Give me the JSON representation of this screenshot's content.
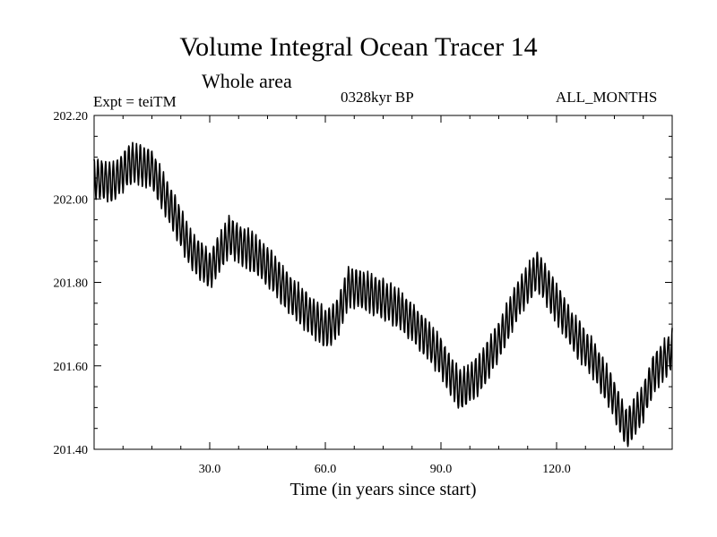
{
  "chart_data": {
    "type": "line",
    "title": "Volume Integral Ocean Tracer 14",
    "subtitle": "Whole area",
    "experiment": "Expt = teiTM",
    "period": "0328kyr BP",
    "months": "ALL_MONTHS",
    "xlabel": "Time (in years since start)",
    "ylabel": "",
    "xlim": [
      0,
      150
    ],
    "ylim": [
      201.4,
      202.2
    ],
    "x_ticks": [
      30,
      60,
      90,
      120
    ],
    "x_tick_labels": [
      "30.0",
      "60.0",
      "90.0",
      "120.0"
    ],
    "y_ticks": [
      201.4,
      201.6,
      201.8,
      202.0,
      202.2
    ],
    "y_tick_labels": [
      "201.40",
      "201.60",
      "201.80",
      "202.00",
      "202.20"
    ],
    "grid": false,
    "seasonal_amplitude": 0.045,
    "series": [
      {
        "name": "Volume Integral Ocean Tracer 14",
        "color": "#000000",
        "trend": [
          [
            0,
            202.05
          ],
          [
            5,
            202.04
          ],
          [
            10,
            202.09
          ],
          [
            15,
            202.07
          ],
          [
            20,
            201.98
          ],
          [
            25,
            201.88
          ],
          [
            30,
            201.83
          ],
          [
            35,
            201.91
          ],
          [
            40,
            201.88
          ],
          [
            45,
            201.84
          ],
          [
            50,
            201.78
          ],
          [
            55,
            201.73
          ],
          [
            60,
            201.69
          ],
          [
            63,
            201.71
          ],
          [
            66,
            201.79
          ],
          [
            70,
            201.78
          ],
          [
            75,
            201.76
          ],
          [
            80,
            201.73
          ],
          [
            85,
            201.68
          ],
          [
            90,
            201.62
          ],
          [
            95,
            201.54
          ],
          [
            100,
            201.58
          ],
          [
            105,
            201.66
          ],
          [
            110,
            201.76
          ],
          [
            115,
            201.83
          ],
          [
            120,
            201.75
          ],
          [
            125,
            201.67
          ],
          [
            130,
            201.61
          ],
          [
            135,
            201.52
          ],
          [
            138,
            201.45
          ],
          [
            142,
            201.5
          ],
          [
            145,
            201.58
          ],
          [
            150,
            201.64
          ]
        ]
      }
    ]
  }
}
